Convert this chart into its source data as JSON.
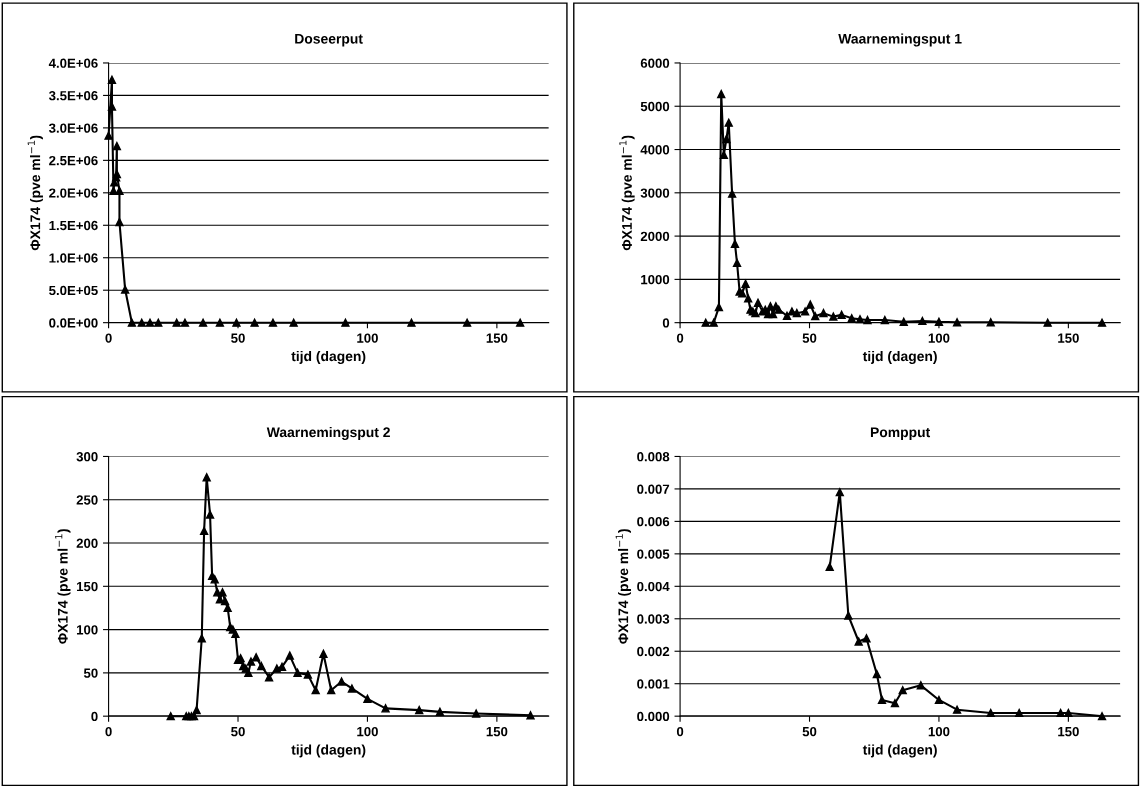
{
  "chart_data": [
    {
      "type": "line",
      "title": "Doseerput",
      "xlabel": "tijd (dagen)",
      "ylabel": "ΦX174 (pve ml$^{−1}$)",
      "marker": "triangle",
      "line_style": "solid",
      "grid": "y",
      "xlim": [
        0,
        170
      ],
      "xticks": [
        0,
        50,
        100,
        150
      ],
      "ylim": [
        0,
        4000000
      ],
      "yticks": [
        {
          "value": 0,
          "label": "0.0E+00"
        },
        {
          "value": 500000,
          "label": "5.0E+05"
        },
        {
          "value": 1000000,
          "label": "1.0E+06"
        },
        {
          "value": 1500000,
          "label": "1.5E+06"
        },
        {
          "value": 2000000,
          "label": "2.0E+06"
        },
        {
          "value": 2500000,
          "label": "2.5E+06"
        },
        {
          "value": 3000000,
          "label": "3.0E+06"
        },
        {
          "value": 3500000,
          "label": "3.5E+06"
        },
        {
          "value": 4000000,
          "label": "4.0E+06"
        }
      ],
      "series": [
        {
          "color": "#000000",
          "x": [
            0,
            1.3,
            1.3,
            1.9,
            2.2,
            2.9,
            3.2,
            3.2,
            4.2,
            4.2,
            6.4,
            9,
            12.8,
            16,
            19.2,
            26.3,
            29.5,
            36.5,
            43,
            49.4,
            56.4,
            63.5,
            71.5,
            91.5,
            117,
            138.5,
            159
          ],
          "values": [
            2880000,
            3740000,
            3330000,
            2030000,
            2160000,
            2240000,
            2720000,
            2290000,
            2030000,
            1550000,
            510000,
            0,
            0,
            0,
            0,
            0,
            0,
            0,
            0,
            0,
            0,
            0,
            0,
            0,
            0,
            0,
            0
          ]
        }
      ]
    },
    {
      "type": "line",
      "title": "Waarnemingsput 1",
      "xlabel": "tijd (dagen)",
      "ylabel": "ΦX174 (pve ml$^{−1}$)",
      "marker": "triangle",
      "line_style": "solid",
      "grid": "y",
      "xlim": [
        0,
        170
      ],
      "xticks": [
        0,
        50,
        100,
        150
      ],
      "ylim": [
        0,
        6000
      ],
      "yticks": [
        0,
        1000,
        2000,
        3000,
        4000,
        5000,
        6000
      ],
      "series": [
        {
          "color": "#000000",
          "x": [
            9.9,
            13,
            15,
            15.9,
            16.9,
            17.9,
            18.8,
            20.1,
            21.2,
            22,
            23,
            24,
            25.3,
            26.3,
            27.2,
            28.1,
            29.1,
            30.1,
            31.9,
            32.9,
            34,
            34.9,
            35.9,
            37,
            38.1,
            41.3,
            43.2,
            45.1,
            48.3,
            50.3,
            52.2,
            55.4,
            59.2,
            62.4,
            66.3,
            69.5,
            72.4,
            79.1,
            86.4,
            93.6,
            100,
            107,
            120,
            142,
            163
          ],
          "values": [
            0,
            0,
            360,
            5280,
            3880,
            4240,
            4620,
            2980,
            1820,
            1380,
            720,
            680,
            900,
            560,
            300,
            260,
            220,
            460,
            260,
            300,
            200,
            380,
            200,
            380,
            300,
            160,
            260,
            220,
            260,
            420,
            150,
            220,
            140,
            180,
            100,
            80,
            60,
            60,
            20,
            40,
            20,
            10,
            10,
            0,
            0
          ]
        }
      ]
    },
    {
      "type": "line",
      "title": "Waarnemingsput 2",
      "xlabel": "tijd (dagen)",
      "ylabel": "ΦX174 (pve ml$^{−1}$)",
      "marker": "triangle",
      "line_style": "solid",
      "grid": "y",
      "xlim": [
        0,
        170
      ],
      "xticks": [
        0,
        50,
        100,
        150
      ],
      "ylim": [
        0,
        300
      ],
      "yticks": [
        0,
        50,
        100,
        150,
        200,
        250,
        300
      ],
      "series": [
        {
          "color": "#000000",
          "x": [
            24,
            30,
            31,
            32,
            33,
            34,
            36,
            36.9,
            37.9,
            39.2,
            40,
            41,
            42,
            43,
            44,
            45,
            46,
            47,
            48,
            49,
            50,
            51,
            52,
            53,
            54,
            55,
            57,
            59,
            62,
            65,
            67,
            70,
            73,
            77,
            80,
            83,
            86,
            90,
            94,
            100,
            107,
            120,
            128,
            142,
            163
          ],
          "values": [
            0,
            0,
            0,
            0,
            0,
            7,
            90,
            214,
            276,
            233,
            162,
            158,
            143,
            135,
            143,
            133,
            125,
            103,
            100,
            95,
            65,
            67,
            58,
            55,
            50,
            63,
            68,
            58,
            45,
            55,
            57,
            70,
            50,
            48,
            30,
            72,
            30,
            40,
            32,
            20,
            9,
            7,
            5,
            3,
            1
          ]
        }
      ]
    },
    {
      "type": "line",
      "title": "Pompput",
      "xlabel": "tijd (dagen)",
      "ylabel": "ΦX174 (pve ml$^{−1}$)",
      "marker": "triangle",
      "line_style": "solid",
      "grid": "y",
      "xlim": [
        0,
        170
      ],
      "xticks": [
        0,
        50,
        100,
        150
      ],
      "ylim": [
        0,
        0.008
      ],
      "yticks": [
        {
          "value": 0,
          "label": "0.000"
        },
        {
          "value": 0.001,
          "label": "0.001"
        },
        {
          "value": 0.002,
          "label": "0.002"
        },
        {
          "value": 0.003,
          "label": "0.003"
        },
        {
          "value": 0.004,
          "label": "0.004"
        },
        {
          "value": 0.005,
          "label": "0.005"
        },
        {
          "value": 0.006,
          "label": "0.006"
        },
        {
          "value": 0.007,
          "label": "0.007"
        },
        {
          "value": 0.008,
          "label": "0.008"
        }
      ],
      "series": [
        {
          "color": "#000000",
          "x": [
            57.8,
            61.7,
            65,
            69,
            72,
            76,
            78,
            83,
            86,
            93,
            100,
            107,
            120,
            131,
            147,
            150,
            163
          ],
          "values": [
            0.0046,
            0.0069,
            0.0031,
            0.0023,
            0.0024,
            0.0013,
            0.0005,
            0.0004,
            0.0008,
            0.00095,
            0.0005,
            0.0002,
            0.0001,
            0.0001,
            0.0001,
            0.0001,
            0
          ]
        }
      ]
    }
  ]
}
